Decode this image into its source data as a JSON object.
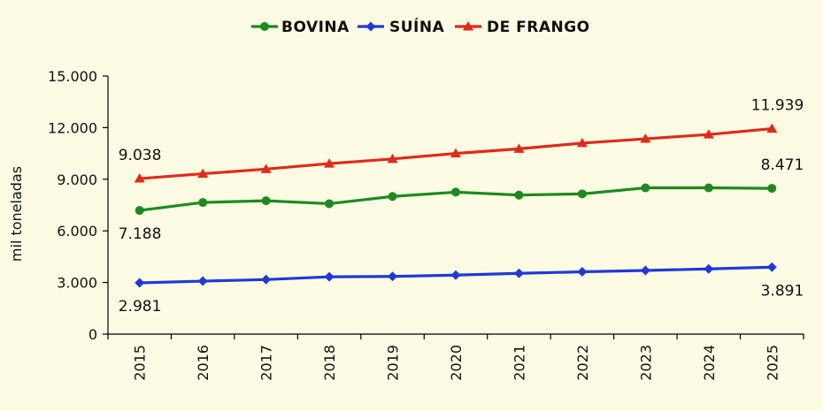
{
  "chart_data": {
    "type": "line",
    "x": [
      "2015",
      "2016",
      "2017",
      "2018",
      "2019",
      "2020",
      "2021",
      "2022",
      "2023",
      "2024",
      "2025"
    ],
    "ylabel": "mil toneladas",
    "xlabel": "",
    "ylim": [
      0,
      15000
    ],
    "yticks": [
      "0",
      "3.000",
      "6.000",
      "9.000",
      "12.000",
      "15.000"
    ],
    "ytick_values": [
      0,
      3000,
      6000,
      9000,
      12000,
      15000
    ],
    "grid": false,
    "legend_position": "top-center",
    "series": [
      {
        "name": "BOVINA",
        "color": "#1e8a1e",
        "marker": "circle",
        "values": [
          7188,
          7650,
          7750,
          7580,
          8000,
          8250,
          8080,
          8150,
          8500,
          8500,
          8471
        ]
      },
      {
        "name": "SUÍNA",
        "color": "#1f3ad6",
        "marker": "diamond",
        "values": [
          2981,
          3080,
          3170,
          3330,
          3350,
          3430,
          3530,
          3620,
          3700,
          3790,
          3891
        ]
      },
      {
        "name": "DE FRANGO",
        "color": "#e02a1a",
        "marker": "triangle",
        "values": [
          9038,
          9320,
          9590,
          9910,
          10180,
          10500,
          10770,
          11100,
          11350,
          11600,
          11939
        ]
      }
    ],
    "annotations": [
      {
        "text": "9.038",
        "series": 2,
        "index": 0,
        "pos": "above"
      },
      {
        "text": "11.939",
        "series": 2,
        "index": 10,
        "pos": "above"
      },
      {
        "text": "8.471",
        "series": 0,
        "index": 10,
        "pos": "above"
      },
      {
        "text": "7.188",
        "series": 0,
        "index": 0,
        "pos": "below"
      },
      {
        "text": "2.981",
        "series": 1,
        "index": 0,
        "pos": "below"
      },
      {
        "text": "3.891",
        "series": 1,
        "index": 10,
        "pos": "below"
      }
    ]
  }
}
